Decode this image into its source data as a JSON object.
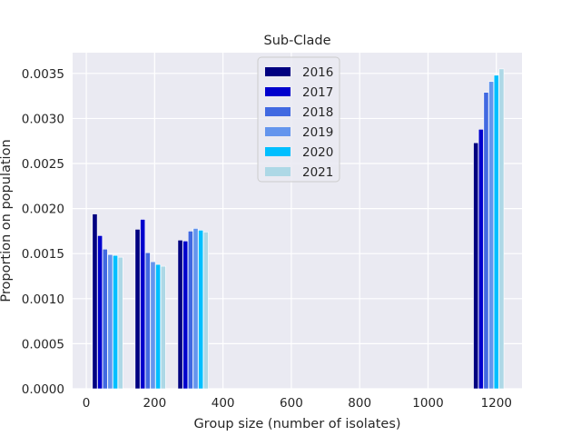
{
  "chart_data": {
    "type": "bar",
    "title": "Sub-Clade",
    "xlabel": "Group size (number of isolates)",
    "ylabel": "Proportion on population",
    "xlim": [
      -40,
      1275
    ],
    "ylim": [
      0,
      0.00373
    ],
    "xticks": [
      0,
      200,
      400,
      600,
      800,
      1000,
      1200
    ],
    "xtick_labels": [
      "0",
      "200",
      "400",
      "600",
      "800",
      "1000",
      "1200"
    ],
    "yticks": [
      0,
      0.0005,
      0.001,
      0.0015,
      0.002,
      0.0025,
      0.003,
      0.0035
    ],
    "ytick_labels": [
      "0.0000",
      "0.0005",
      "0.0010",
      "0.0015",
      "0.0020",
      "0.0025",
      "0.0030",
      "0.0035"
    ],
    "grid": true,
    "legend_position": "top-center",
    "bar_width": 14,
    "groups": [
      {
        "x": [
          25,
          40,
          55,
          70,
          85,
          100
        ]
      },
      {
        "x": [
          150,
          165,
          180,
          195,
          210,
          225
        ]
      },
      {
        "x": [
          275,
          290,
          305,
          320,
          335,
          350
        ]
      },
      {
        "x": [
          1140,
          1155,
          1170,
          1185,
          1200,
          1215
        ]
      }
    ],
    "series": [
      {
        "name": "2016",
        "color": "#000080",
        "values": [
          0.00194,
          0.00177,
          0.00165,
          0.00273
        ]
      },
      {
        "name": "2017",
        "color": "#0000cd",
        "values": [
          0.0017,
          0.00188,
          0.00164,
          0.00288
        ]
      },
      {
        "name": "2018",
        "color": "#4169e1",
        "values": [
          0.00155,
          0.00151,
          0.00175,
          0.00329
        ]
      },
      {
        "name": "2019",
        "color": "#6495ed",
        "values": [
          0.00149,
          0.00141,
          0.00178,
          0.00341
        ]
      },
      {
        "name": "2020",
        "color": "#00bfff",
        "values": [
          0.00148,
          0.00138,
          0.00176,
          0.00348
        ]
      },
      {
        "name": "2021",
        "color": "#add8e6",
        "values": [
          0.00146,
          0.00136,
          0.00174,
          0.00355
        ]
      }
    ]
  }
}
